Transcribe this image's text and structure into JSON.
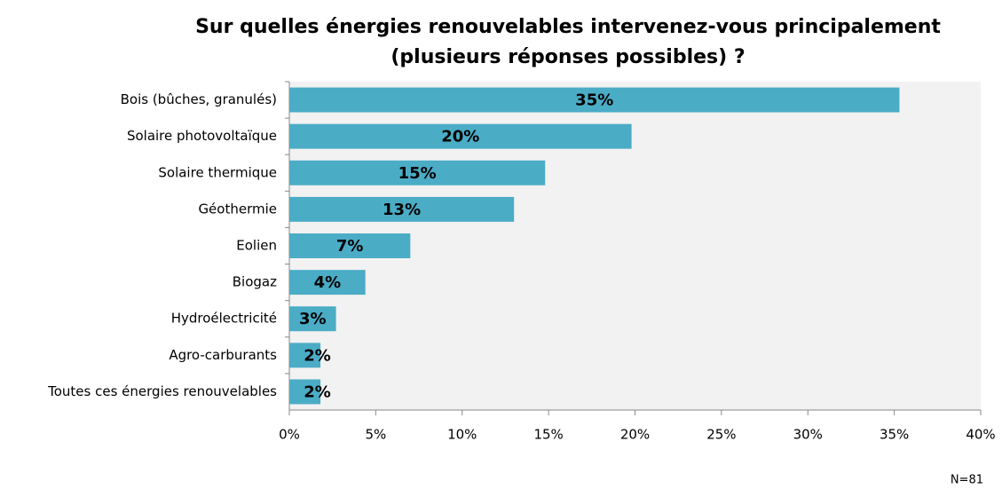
{
  "chart_data": {
    "type": "barh",
    "title": [
      "Sur quelles énergies renouvelables intervenez-vous principalement",
      "(plusieurs réponses possibles) ?"
    ],
    "categories": [
      "Bois (bûches, granulés)",
      "Solaire photovoltaïque",
      "Solaire thermique",
      "Géothermie",
      "Eolien",
      "Biogaz",
      "Hydroélectricité",
      "Agro-carburants",
      "Toutes ces énergies renouvelables"
    ],
    "values": [
      35.3,
      19.8,
      14.8,
      13.0,
      7.0,
      4.4,
      2.7,
      1.8,
      1.8
    ],
    "value_labels": [
      "35%",
      "20%",
      "15%",
      "13%",
      "7%",
      "4%",
      "3%",
      "2%",
      "2%"
    ],
    "color": "#4bacc6",
    "xlim": [
      0,
      40
    ],
    "xticks": [
      {
        "value": 0,
        "label": "0%"
      },
      {
        "value": 5,
        "label": "5%"
      },
      {
        "value": 10,
        "label": "10%"
      },
      {
        "value": 15,
        "label": "15%"
      },
      {
        "value": 20,
        "label": "20%"
      },
      {
        "value": 25,
        "label": "25%"
      },
      {
        "value": 30,
        "label": "30%"
      },
      {
        "value": 35,
        "label": "35%"
      },
      {
        "value": 40,
        "label": "40%"
      }
    ],
    "annotation": "N=81"
  }
}
